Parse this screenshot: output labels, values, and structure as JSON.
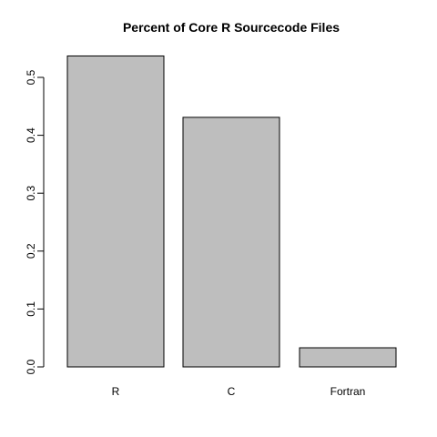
{
  "chart_data": {
    "type": "bar",
    "title": "Percent of Core R Sourcecode Files",
    "xlabel": "",
    "ylabel": "",
    "categories": [
      "R",
      "C",
      "Fortran"
    ],
    "values": [
      0.537,
      0.431,
      0.033
    ],
    "ylim": [
      0,
      0.55
    ],
    "yticks": [
      0.0,
      0.1,
      0.2,
      0.3,
      0.4,
      0.5
    ],
    "ytick_labels": [
      "0.0",
      "0.1",
      "0.2",
      "0.3",
      "0.4",
      "0.5"
    ],
    "bar_color": "#bebebe",
    "grid": false,
    "legend": "none"
  }
}
